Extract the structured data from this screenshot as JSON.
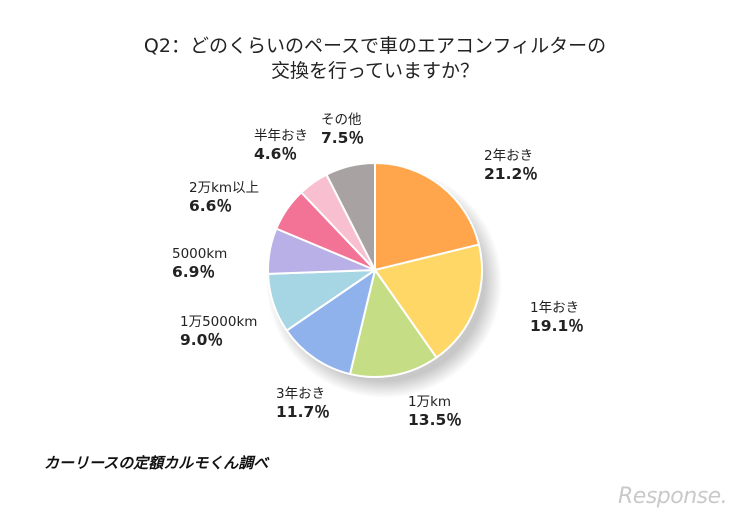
{
  "chart_data": {
    "type": "pie",
    "title_lines": [
      "Q2：どのくらいのペースで車のエアコンフィルターの",
      "交換を行っていますか？"
    ],
    "slices": [
      {
        "label": "2年おき",
        "pct_label": "21.2％",
        "value": 21.2,
        "color": "#ffa64d"
      },
      {
        "label": "1年おき",
        "pct_label": "19.1％",
        "value": 19.1,
        "color": "#ffd766"
      },
      {
        "label": "1万km",
        "pct_label": "13.5％",
        "value": 13.5,
        "color": "#c5de86"
      },
      {
        "label": "3年おき",
        "pct_label": "11.7％",
        "value": 11.7,
        "color": "#8fb2ec"
      },
      {
        "label": "1万5000km",
        "pct_label": "9.0％",
        "value": 9.0,
        "color": "#a6d5e3"
      },
      {
        "label": "5000km",
        "pct_label": "6.9％",
        "value": 6.9,
        "color": "#b8b0e6"
      },
      {
        "label": "2万km以上",
        "pct_label": "6.6％",
        "value": 6.6,
        "color": "#f27395"
      },
      {
        "label": "半年おき",
        "pct_label": "4.6％",
        "value": 4.6,
        "color": "#f8bfd0"
      },
      {
        "label": "その他",
        "pct_label": "7.5％",
        "value": 7.5,
        "color": "#a9a2a2"
      }
    ],
    "start_angle": "12 o'clock",
    "direction": "clockwise"
  },
  "source_text": "カーリースの定額カルモくん調べ",
  "watermark": "Response."
}
